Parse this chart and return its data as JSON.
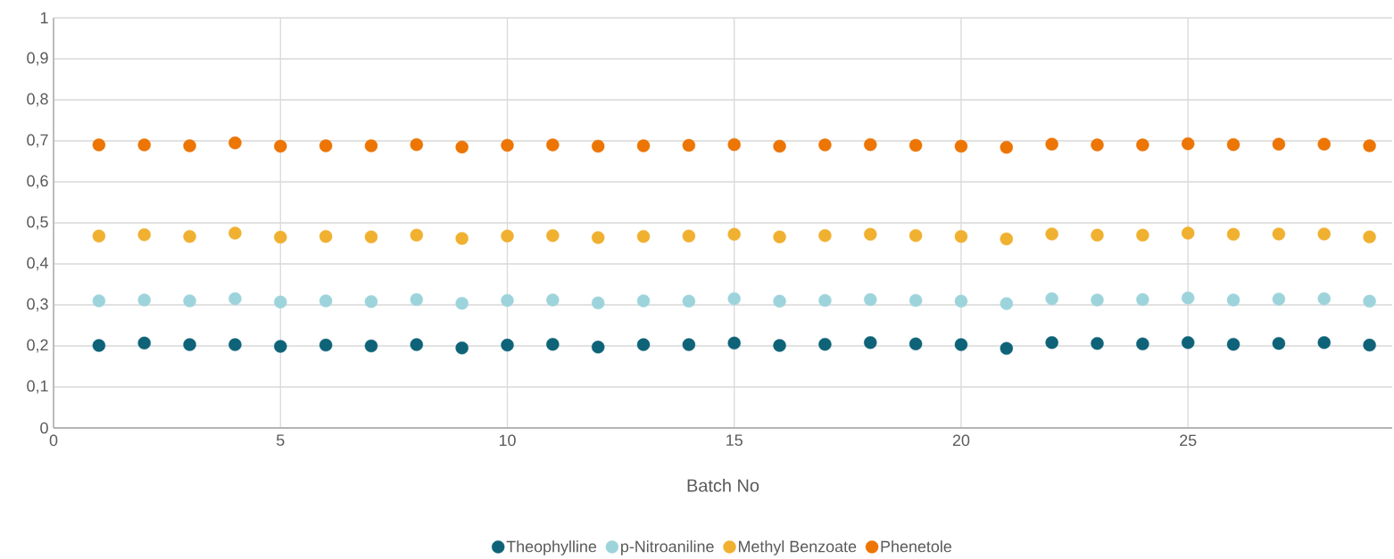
{
  "chart_data": {
    "type": "scatter",
    "xlabel": "Batch No",
    "x": [
      1,
      2,
      3,
      4,
      5,
      6,
      7,
      8,
      9,
      10,
      11,
      12,
      13,
      14,
      15,
      16,
      17,
      18,
      19,
      20,
      21,
      22,
      23,
      24,
      25,
      26,
      27,
      28,
      29
    ],
    "series": [
      {
        "name": "Theophylline",
        "color": "#0e6378",
        "values": [
          0.201,
          0.207,
          0.203,
          0.203,
          0.199,
          0.202,
          0.2,
          0.203,
          0.195,
          0.202,
          0.204,
          0.197,
          0.203,
          0.203,
          0.207,
          0.201,
          0.204,
          0.208,
          0.205,
          0.203,
          0.194,
          0.208,
          0.206,
          0.205,
          0.208,
          0.204,
          0.206,
          0.208,
          0.202
        ]
      },
      {
        "name": "p-Nitroaniline",
        "color": "#9dd4dc",
        "values": [
          0.31,
          0.312,
          0.31,
          0.315,
          0.307,
          0.31,
          0.308,
          0.313,
          0.304,
          0.311,
          0.312,
          0.305,
          0.31,
          0.309,
          0.315,
          0.309,
          0.311,
          0.313,
          0.311,
          0.309,
          0.303,
          0.315,
          0.312,
          0.313,
          0.317,
          0.312,
          0.314,
          0.315,
          0.309
        ]
      },
      {
        "name": "Methyl Benzoate",
        "color": "#f0b030",
        "values": [
          0.468,
          0.471,
          0.467,
          0.475,
          0.465,
          0.467,
          0.466,
          0.47,
          0.462,
          0.468,
          0.469,
          0.464,
          0.467,
          0.468,
          0.472,
          0.466,
          0.469,
          0.472,
          0.469,
          0.467,
          0.461,
          0.473,
          0.47,
          0.47,
          0.475,
          0.472,
          0.473,
          0.473,
          0.466
        ]
      },
      {
        "name": "Phenetole",
        "color": "#ec7504",
        "values": [
          0.69,
          0.69,
          0.688,
          0.695,
          0.687,
          0.688,
          0.688,
          0.691,
          0.685,
          0.689,
          0.69,
          0.687,
          0.688,
          0.689,
          0.691,
          0.687,
          0.69,
          0.691,
          0.689,
          0.687,
          0.684,
          0.692,
          0.69,
          0.69,
          0.693,
          0.691,
          0.692,
          0.692,
          0.688
        ]
      }
    ],
    "xlim": [
      0,
      29.5
    ],
    "xticks": [
      0,
      5,
      10,
      15,
      20,
      25
    ],
    "ylim": [
      0,
      1
    ],
    "yticks": [
      0,
      {
        "value": 0.1,
        "label": "0,1"
      },
      {
        "value": 0.2,
        "label": "0,2"
      },
      {
        "value": 0.3,
        "label": "0,3"
      },
      {
        "value": 0.4,
        "label": "0,4"
      },
      {
        "value": 0.5,
        "label": "0,5"
      },
      {
        "value": 0.6,
        "label": "0,6"
      },
      {
        "value": 0.7,
        "label": "0,7"
      },
      {
        "value": 0.8,
        "label": "0,8"
      },
      {
        "value": 0.9,
        "label": "0,9"
      },
      1
    ],
    "grid": true,
    "legend": "bottom",
    "marker": "circle"
  }
}
